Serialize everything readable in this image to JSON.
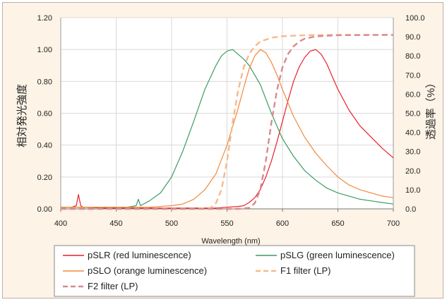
{
  "chart_data": {
    "type": "line",
    "xlabel": "Wavelength (nm)",
    "ylabel_left": "相対発光強度",
    "ylabel_right": "透過率（%）",
    "xlim": [
      400,
      700
    ],
    "ylim_left": [
      0,
      1.2
    ],
    "ylim_right": [
      0,
      100
    ],
    "x_ticks": [
      "400",
      "450",
      "500",
      "550",
      "600",
      "650",
      "700"
    ],
    "y_ticks_left": [
      "0.00",
      "0.20",
      "0.40",
      "0.60",
      "0.80",
      "1.00",
      "1.20"
    ],
    "y_ticks_right": [
      "0.0",
      "10.0",
      "20.0",
      "30.0",
      "40.0",
      "50.0",
      "60.0",
      "70.0",
      "80.0",
      "90.0",
      "100.0"
    ],
    "grid": true,
    "legend_position": "bottom",
    "series": [
      {
        "name": "pSLR (red luminescence)",
        "color": "#e8212a",
        "axis": "left",
        "dash": "solid",
        "x": [
          400,
          410,
          414,
          416,
          418,
          420,
          440,
          480,
          520,
          540,
          550,
          560,
          565,
          570,
          575,
          580,
          585,
          590,
          595,
          600,
          605,
          610,
          615,
          620,
          625,
          630,
          635,
          640,
          645,
          650,
          660,
          670,
          680,
          690,
          700
        ],
        "y": [
          0.01,
          0.01,
          0.02,
          0.09,
          0.02,
          0.01,
          0.005,
          0.005,
          0.005,
          0.005,
          0.01,
          0.015,
          0.02,
          0.04,
          0.07,
          0.12,
          0.2,
          0.3,
          0.42,
          0.55,
          0.68,
          0.8,
          0.89,
          0.95,
          0.99,
          1.0,
          0.97,
          0.91,
          0.83,
          0.75,
          0.62,
          0.52,
          0.45,
          0.38,
          0.32
        ]
      },
      {
        "name": "pSLG (green luminescence)",
        "color": "#3f9a64",
        "axis": "left",
        "dash": "solid",
        "x": [
          400,
          420,
          440,
          460,
          468,
          470,
          472,
          480,
          490,
          500,
          510,
          520,
          530,
          540,
          545,
          550,
          555,
          560,
          565,
          570,
          580,
          590,
          600,
          610,
          620,
          630,
          640,
          650,
          660,
          670,
          680,
          690,
          700
        ],
        "y": [
          0.01,
          0.01,
          0.01,
          0.01,
          0.02,
          0.06,
          0.02,
          0.05,
          0.1,
          0.2,
          0.36,
          0.55,
          0.75,
          0.9,
          0.96,
          0.99,
          1.0,
          0.97,
          0.94,
          0.9,
          0.78,
          0.6,
          0.44,
          0.33,
          0.24,
          0.18,
          0.13,
          0.1,
          0.08,
          0.06,
          0.05,
          0.04,
          0.03
        ]
      },
      {
        "name": "pSLO (orange luminescence)",
        "color": "#f08a3e",
        "axis": "left",
        "dash": "solid",
        "x": [
          400,
          440,
          480,
          500,
          510,
          520,
          530,
          540,
          550,
          560,
          565,
          570,
          575,
          580,
          585,
          590,
          595,
          600,
          610,
          620,
          630,
          640,
          650,
          660,
          670,
          680,
          690,
          700
        ],
        "y": [
          0.01,
          0.01,
          0.01,
          0.02,
          0.03,
          0.06,
          0.12,
          0.22,
          0.4,
          0.63,
          0.76,
          0.88,
          0.96,
          1.0,
          0.98,
          0.92,
          0.84,
          0.75,
          0.58,
          0.45,
          0.35,
          0.27,
          0.2,
          0.15,
          0.12,
          0.1,
          0.08,
          0.07
        ]
      },
      {
        "name": "F1 filter (LP)",
        "color": "#f7b98a",
        "axis": "right",
        "dash": "dashed",
        "x": [
          400,
          520,
          535,
          540,
          545,
          550,
          555,
          560,
          565,
          570,
          575,
          580,
          590,
          600,
          620,
          650,
          700
        ],
        "y": [
          0,
          0,
          0.5,
          3,
          10,
          25,
          45,
          62,
          74,
          81,
          85,
          87.5,
          89.5,
          90.3,
          90.8,
          91,
          91
        ]
      },
      {
        "name": "F2 filter (LP)",
        "color": "#d98a8f",
        "axis": "right",
        "dash": "dashed",
        "x": [
          400,
          560,
          570,
          575,
          580,
          585,
          590,
          595,
          600,
          605,
          610,
          615,
          620,
          630,
          650,
          700
        ],
        "y": [
          0,
          0,
          0.5,
          3,
          10,
          25,
          45,
          62,
          74,
          81,
          85,
          87.5,
          89,
          90.2,
          90.8,
          91
        ]
      }
    ]
  }
}
